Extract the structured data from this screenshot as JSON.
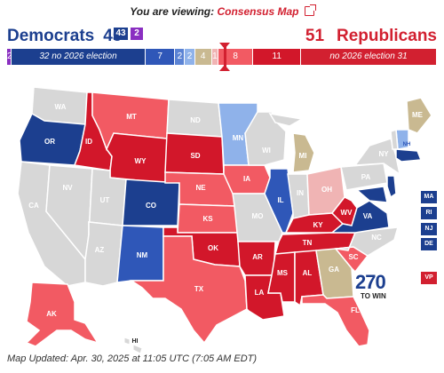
{
  "header": {
    "viewing_prefix": "You are viewing:",
    "viewing_map": "Consensus Map",
    "dem_label": "Democrats",
    "dem_total": "45",
    "dem_box_a": "43",
    "dem_box_b": "2",
    "rep_total": "51",
    "rep_label": "Republicans"
  },
  "seat_bar": [
    {
      "label": "2",
      "color": "#8a2fc1",
      "flex": 4
    },
    {
      "label": "32 no 2026 election",
      "color": "#1c3f8f",
      "flex": 148,
      "italic": true
    },
    {
      "label": "7",
      "color": "#2f57b8",
      "flex": 32
    },
    {
      "label": "2",
      "color": "#5b83d4",
      "flex": 10
    },
    {
      "label": "2",
      "color": "#8fb2ea",
      "flex": 10
    },
    {
      "label": "4",
      "color": "#c9b991",
      "flex": 18
    },
    {
      "label": "1",
      "color": "#f0b4b4",
      "flex": 6
    },
    {
      "label": "8",
      "color": "#f25a63",
      "flex": 38
    },
    {
      "label": "11",
      "color": "#d2172a",
      "flex": 52
    },
    {
      "label": "no 2026 election 31",
      "color": "#d22030",
      "flex": 150,
      "italic": true
    }
  ],
  "legend_colors": {
    "safe_d": "#1c3f8f",
    "likely_d": "#2f57b8",
    "lean_d": "#5b83d4",
    "tilt_d": "#8fb2ea",
    "tossup": "#c9b991",
    "tilt_r": "#f0b4b4",
    "lean_r": "#f25a63",
    "safe_r": "#d2172a",
    "no_election": "#d7d7d7"
  },
  "states": [
    "WA",
    "OR",
    "CA",
    "NV",
    "ID",
    "MT",
    "WY",
    "UT",
    "AZ",
    "CO",
    "NM",
    "ND",
    "SD",
    "NE",
    "KS",
    "OK",
    "TX",
    "MN",
    "IA",
    "MO",
    "AR",
    "LA",
    "WI",
    "IL",
    "MI",
    "IN",
    "OH",
    "KY",
    "TN",
    "MS",
    "AL",
    "GA",
    "FL",
    "SC",
    "NC",
    "VA",
    "WV",
    "PA",
    "NY",
    "ME",
    "AK",
    "HI"
  ],
  "side_boxes": [
    {
      "abbr": "MA",
      "color": "#1c3f8f"
    },
    {
      "abbr": "RI",
      "color": "#1c3f8f"
    },
    {
      "abbr": "NJ",
      "color": "#1c3f8f"
    },
    {
      "abbr": "DE",
      "color": "#1c3f8f"
    }
  ],
  "vp_box": {
    "abbr": "VP",
    "color": "#d22030"
  },
  "nh_label": "NH",
  "logo": {
    "number": "270",
    "text": "TO WIN"
  },
  "footer": "Map Updated: Apr. 30, 2025 at 11:05 UTC (7:05 AM EDT)"
}
